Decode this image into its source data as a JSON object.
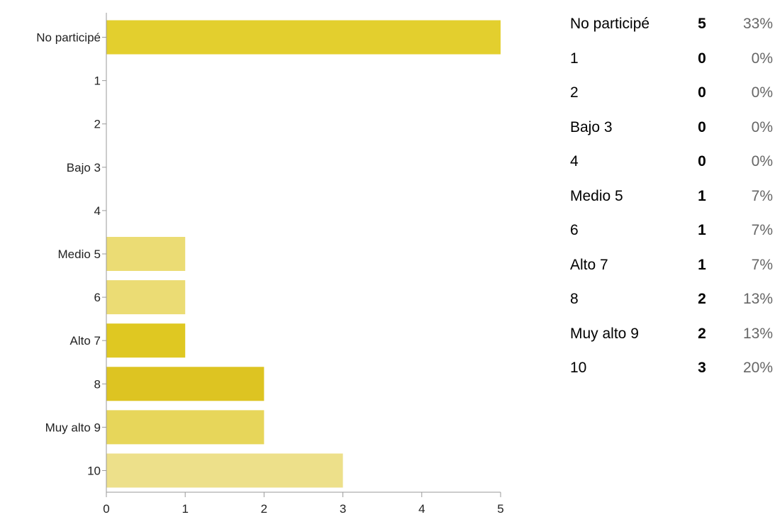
{
  "chart_data": {
    "type": "bar",
    "orientation": "horizontal",
    "categories": [
      "No participé",
      "1",
      "2",
      "Bajo 3",
      "4",
      "Medio 5",
      "6",
      "Alto 7",
      "8",
      "Muy alto 9",
      "10"
    ],
    "values": [
      5,
      0,
      0,
      0,
      0,
      1,
      1,
      1,
      2,
      2,
      3
    ],
    "percentages": [
      "33%",
      "0%",
      "0%",
      "0%",
      "0%",
      "7%",
      "7%",
      "7%",
      "13%",
      "13%",
      "20%"
    ],
    "bar_colors": [
      "#e3cf2e",
      "#e3cf2e",
      "#e3cf2e",
      "#e3cf2e",
      "#e3cf2e",
      "#ebdc74",
      "#ebdc74",
      "#dfc822",
      "#ddc422",
      "#e7d65a",
      "#ede08a"
    ],
    "xlim": [
      0,
      5
    ],
    "xticks": [
      "0",
      "1",
      "2",
      "3",
      "4",
      "5"
    ],
    "title": "",
    "xlabel": "",
    "ylabel": "",
    "grid": false,
    "legend": "none"
  }
}
